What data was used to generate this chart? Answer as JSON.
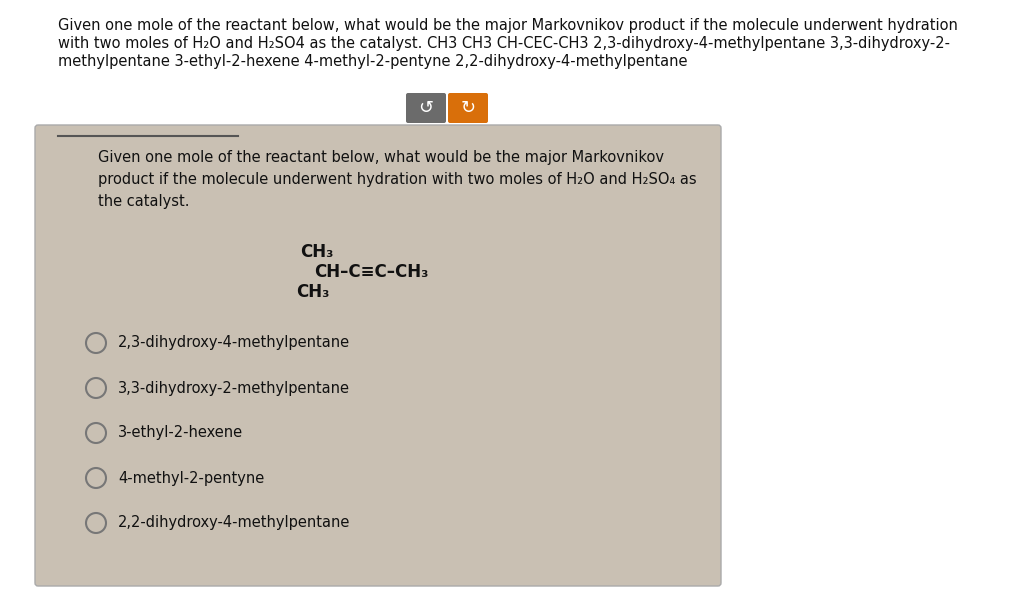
{
  "bg_color": "#ffffff",
  "card_bg": "#c9c0b3",
  "card_border": "#aaaaaa",
  "white_bg": "#ffffff",
  "top_line1": "Given one mole of the reactant below, what would be the major Markovnikov product if the molecule underwent hydration",
  "top_line2": "with two moles of H₂O and H₂SO4 as the catalyst. CH3 CH3 CH-CEC-CH3 2,3-dihydroxy-4-methylpentane 3,3-dihydroxy-2-",
  "top_line3": "methylpentane 3-ethyl-2-hexene 4-methyl-2-pentyne 2,2-dihydroxy-4-methylpentane",
  "question_line1": "Given one mole of the reactant below, what would be the major Markovnikov",
  "question_line2": "product if the molecule underwent hydration with two moles of H₂O and H₂SO₄ as",
  "question_line3": "the catalyst.",
  "btn1_color": "#6b6b6b",
  "btn2_color": "#d96f0a",
  "options": [
    "2,3-dihydroxy-4-methylpentane",
    "3,3-dihydroxy-2-methylpentane",
    "3-ethyl-2-hexene",
    "4-methyl-2-pentyne",
    "2,2-dihydroxy-4-methylpentane"
  ]
}
